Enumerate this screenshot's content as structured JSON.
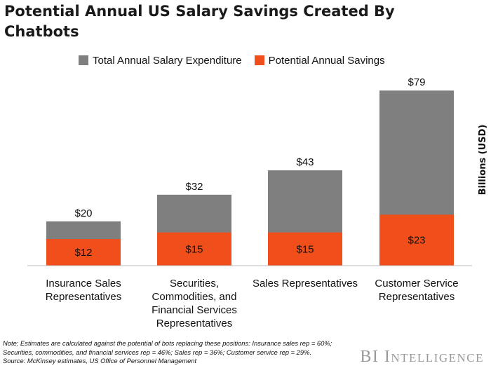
{
  "title": "Potential Annual US Salary Savings Created By Chatbots",
  "legend": [
    {
      "label": "Total Annual Salary Expenditure",
      "color": "#7f7f7f"
    },
    {
      "label": "Potential Annual Savings",
      "color": "#f04e1a"
    }
  ],
  "note_lines": [
    "Note: Estimates are calculated against the potential of bots replacing these positions: Insurance sales rep = 60%;",
    "Securities, commodities, and financial services rep = 46%; Sales rep = 36%; Customer service rep = 29%.",
    "Source: McKinsey estimates, US Office of Personnel Management"
  ],
  "brand": {
    "initials": "BI",
    "word": "Intelligence"
  },
  "chart_data": {
    "type": "bar",
    "stacked": false,
    "overlapping": true,
    "categories": [
      [
        "Insurance Sales",
        "Representatives"
      ],
      [
        "Securities,",
        "Commodities, and",
        "Financial Services",
        "Representatives"
      ],
      [
        "Sales Representatives"
      ],
      [
        "Customer Service",
        "Representatives"
      ]
    ],
    "series": [
      {
        "name": "Total Annual Salary Expenditure",
        "color": "#7f7f7f",
        "values": [
          20,
          32,
          43,
          79
        ],
        "labels": [
          "$20",
          "$32",
          "$43",
          "$79"
        ]
      },
      {
        "name": "Potential Annual Savings",
        "color": "#f04e1a",
        "values": [
          12,
          15,
          15,
          23
        ],
        "labels": [
          "$12",
          "$15",
          "$15",
          "$23"
        ]
      }
    ],
    "ylabel": "Billions (USD)",
    "ylim": [
      0,
      80
    ],
    "grid": false,
    "legend_position": "top"
  }
}
